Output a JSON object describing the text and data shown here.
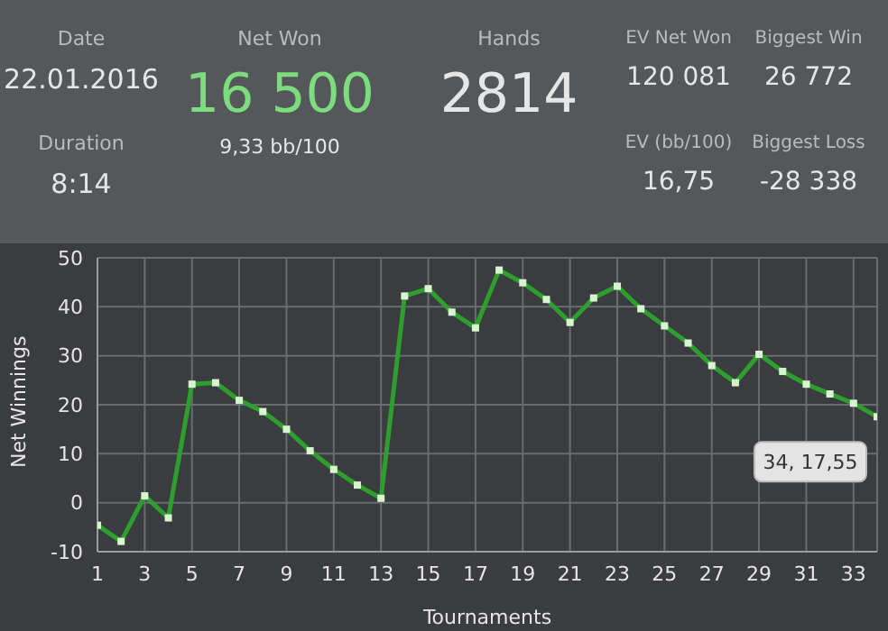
{
  "chart_data": [
    {
      "type": "other",
      "annotations": [
        "Date",
        "22.01.2016",
        "Net Won",
        "16 500",
        "9,33 bb/100",
        "Hands",
        "2814",
        "EV Net Won",
        "120 081",
        "Biggest Win",
        "26 772",
        "Duration",
        "8:14",
        "EV (bb/100)",
        "16,75",
        "Biggest Loss",
        "-28 338"
      ]
    },
    {
      "type": "line",
      "xlabel": "Tournaments",
      "ylabel": "Net Winnings",
      "x": [
        1,
        2,
        3,
        4,
        5,
        6,
        7,
        8,
        9,
        10,
        11,
        12,
        13,
        14,
        15,
        16,
        17,
        18,
        19,
        20,
        21,
        22,
        23,
        24,
        25,
        26,
        27,
        28,
        29,
        30,
        31,
        32,
        33,
        34
      ],
      "series": [
        {
          "color": "#2e9e2e",
          "values": [
            -4.6,
            -7.9,
            1.4,
            -3.1,
            24.2,
            24.5,
            20.9,
            18.6,
            15.0,
            10.6,
            6.8,
            3.6,
            0.9,
            42.2,
            43.7,
            38.9,
            35.7,
            47.5,
            44.9,
            41.5,
            36.8,
            41.8,
            44.2,
            39.6,
            36.1,
            32.6,
            28.0,
            24.5,
            30.3,
            26.8,
            24.2,
            22.2,
            20.3,
            17.55
          ]
        }
      ],
      "xlim": [
        1,
        34
      ],
      "xticks": [
        1,
        3,
        5,
        7,
        9,
        11,
        13,
        15,
        17,
        19,
        21,
        23,
        25,
        27,
        29,
        31,
        33
      ],
      "ylim": [
        -10,
        50
      ],
      "yticks": [
        -10,
        0,
        10,
        20,
        30,
        40,
        50
      ],
      "grid": true,
      "marker": "square",
      "line_style": "solid",
      "legend": false,
      "annotations": [
        {
          "text": "34, 17,55",
          "x": 34,
          "y": 17.55
        }
      ]
    }
  ]
}
